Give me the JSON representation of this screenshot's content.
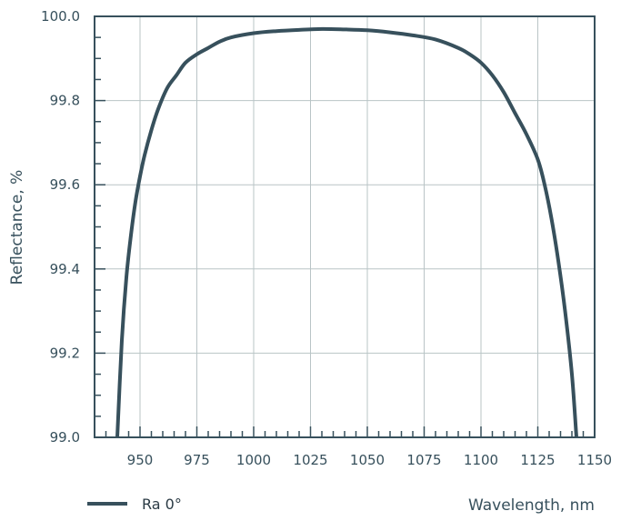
{
  "chart_data": {
    "type": "line",
    "xlabel": "Wavelength, nm",
    "ylabel": "Reflectance, %",
    "xlim": [
      930,
      1150
    ],
    "ylim": [
      99.0,
      100.0
    ],
    "x_ticks": [
      950,
      975,
      1000,
      1025,
      1050,
      1075,
      1100,
      1125,
      1150
    ],
    "x_tick_labels": [
      "950",
      "975",
      "1000",
      "1025",
      "1050",
      "1075",
      "1100",
      "1125",
      "1150"
    ],
    "y_ticks": [
      99.0,
      99.2,
      99.4,
      99.6,
      99.8,
      100.0
    ],
    "y_tick_labels": [
      "99.0",
      "99.2",
      "99.4",
      "99.6",
      "99.8",
      "100.0"
    ],
    "grid": true,
    "legend_position": "bottom-left",
    "colors": {
      "line": "#37505c",
      "grid": "#b9c4c6",
      "axis": "#37505c"
    },
    "series": [
      {
        "name": "Ra 0°",
        "x": [
          940,
          942,
          944,
          946,
          948,
          950,
          952,
          955,
          958,
          962,
          966,
          970,
          975,
          980,
          985,
          990,
          1000,
          1010,
          1020,
          1030,
          1040,
          1050,
          1060,
          1070,
          1080,
          1090,
          1095,
          1100,
          1105,
          1110,
          1115,
          1120,
          1125,
          1128,
          1131,
          1134,
          1137,
          1140,
          1142
        ],
        "y": [
          99.0,
          99.23,
          99.38,
          99.48,
          99.56,
          99.62,
          99.67,
          99.73,
          99.78,
          99.83,
          99.86,
          99.89,
          99.91,
          99.925,
          99.94,
          99.95,
          99.96,
          99.965,
          99.968,
          99.97,
          99.969,
          99.967,
          99.962,
          99.955,
          99.945,
          99.925,
          99.91,
          99.89,
          99.86,
          99.82,
          99.77,
          99.72,
          99.66,
          99.6,
          99.52,
          99.42,
          99.3,
          99.15,
          99.0
        ]
      }
    ]
  }
}
